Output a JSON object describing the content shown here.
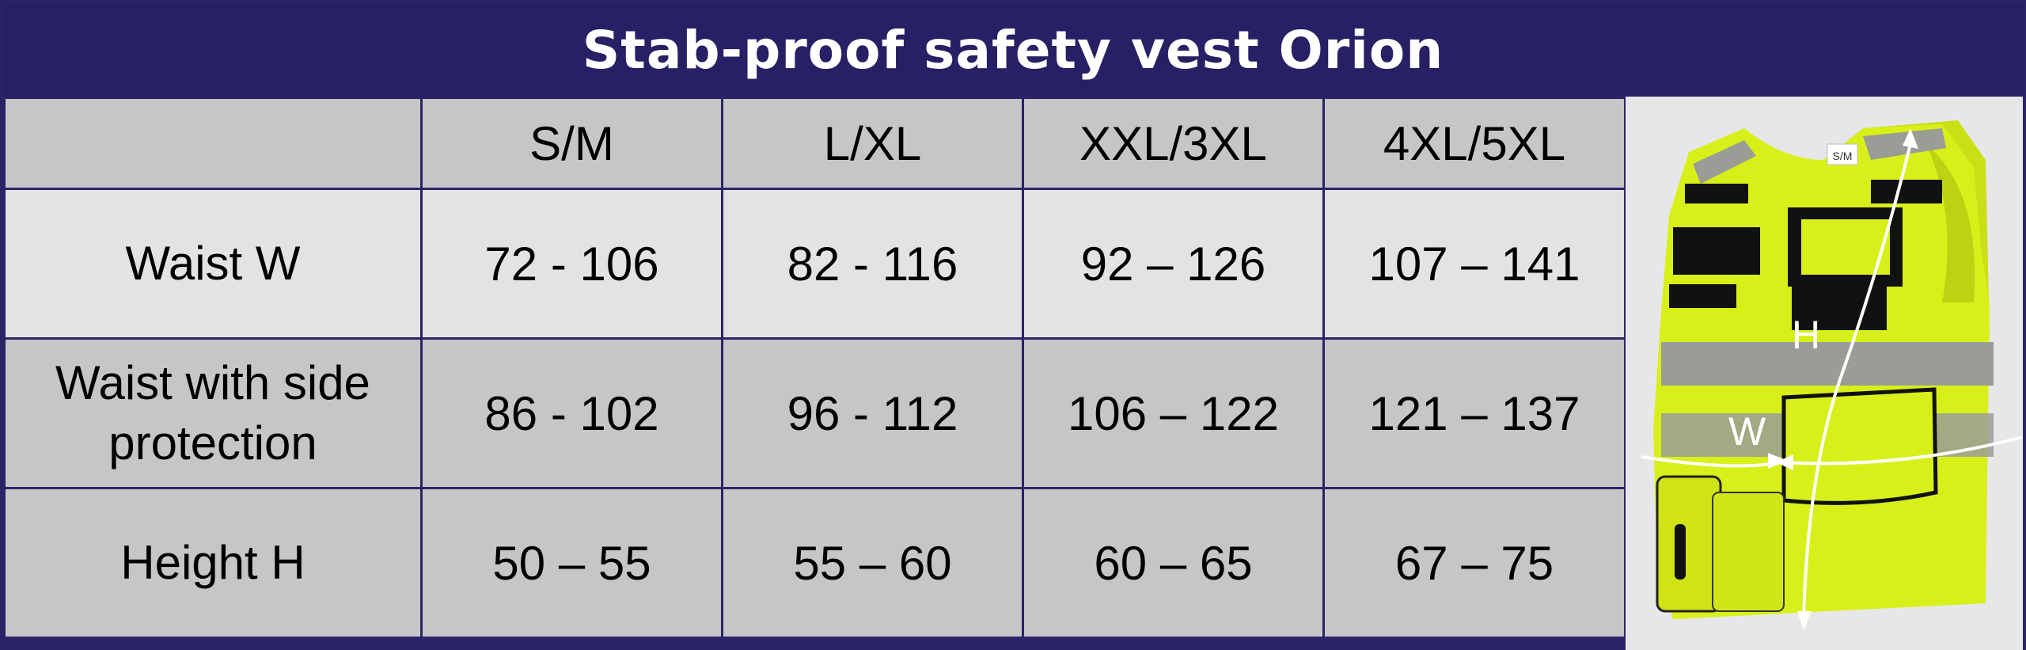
{
  "title": "Stab-proof safety vest Orion",
  "columns": [
    "",
    "S/M",
    "L/XL",
    "XXL/3XL",
    "4XL/5XL"
  ],
  "rows": [
    {
      "label": "Waist W",
      "values": [
        "72 - 106",
        "82 - 116",
        "92 – 126",
        "107 – 141"
      ]
    },
    {
      "label": "Waist with side protection",
      "values": [
        "86 - 102",
        "96 - 112",
        "106 – 122",
        "121 – 137"
      ]
    },
    {
      "label": "Height H",
      "values": [
        "50 – 55",
        "55 – 60",
        "60 – 65",
        "67 – 75"
      ]
    }
  ],
  "illustration": {
    "subject": "hi-vis-vest",
    "size_tag": "S/M",
    "height_marker": "H",
    "width_marker": "W",
    "colors": {
      "vest": "#d8f01a",
      "reflective": "#9a9c96",
      "patch": "#111111",
      "header": "#272064"
    }
  }
}
